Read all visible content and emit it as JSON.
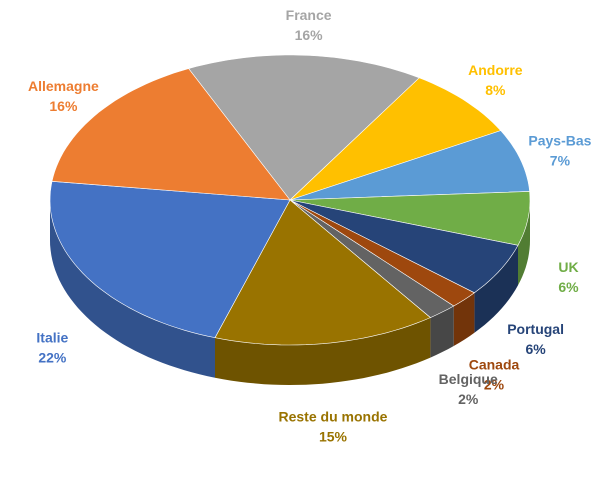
{
  "chart_data": {
    "type": "pie3d",
    "categories": [
      "France",
      "Andorre",
      "Pays-Bas",
      "UK",
      "Portugal",
      "Canada",
      "Belgique",
      "Reste du monde",
      "Italie",
      "Allemagne"
    ],
    "values": [
      16,
      8,
      7,
      6,
      6,
      2,
      2,
      15,
      22,
      16
    ],
    "value_labels": [
      "16%",
      "8%",
      "7%",
      "6%",
      "6%",
      "2%",
      "2%",
      "15%",
      "22%",
      "16%"
    ],
    "colors": [
      "#a5a5a5",
      "#ffc000",
      "#5b9bd5",
      "#70ad47",
      "#264478",
      "#9e480e",
      "#636363",
      "#997300",
      "#4472c4",
      "#ed7d31"
    ]
  }
}
